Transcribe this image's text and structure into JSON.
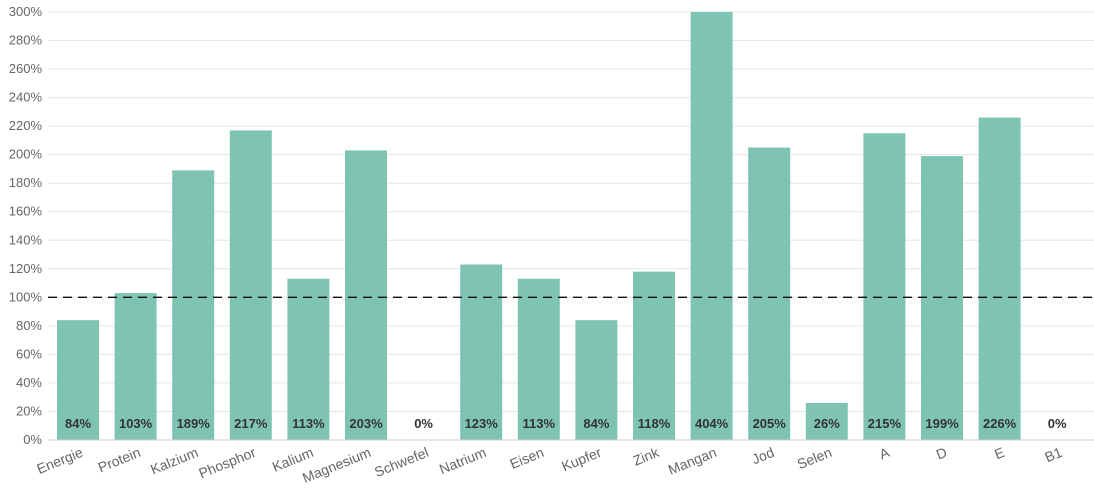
{
  "chart_data": {
    "type": "bar",
    "categories": [
      "Energie",
      "Protein",
      "Kalzium",
      "Phosphor",
      "Kalium",
      "Magnesium",
      "Schwefel",
      "Natrium",
      "Eisen",
      "Kupfer",
      "Zink",
      "Mangan",
      "Jod",
      "Selen",
      "A",
      "D",
      "E",
      "B1"
    ],
    "values": [
      84,
      103,
      189,
      217,
      113,
      203,
      0,
      123,
      113,
      84,
      118,
      404,
      205,
      26,
      215,
      199,
      226,
      0
    ],
    "data_labels": [
      "84%",
      "103%",
      "189%",
      "217%",
      "113%",
      "203%",
      "0%",
      "123%",
      "113%",
      "84%",
      "118%",
      "404%",
      "205%",
      "26%",
      "215%",
      "199%",
      "226%",
      "0%"
    ],
    "y_ticks": [
      "0%",
      "20%",
      "40%",
      "60%",
      "80%",
      "100%",
      "120%",
      "140%",
      "160%",
      "180%",
      "200%",
      "220%",
      "240%",
      "260%",
      "280%",
      "300%"
    ],
    "ylim": [
      0,
      300
    ],
    "reference_line": 100,
    "grid": true,
    "bar_color": "#7fc4b2",
    "title": "",
    "xlabel": "",
    "ylabel": ""
  }
}
